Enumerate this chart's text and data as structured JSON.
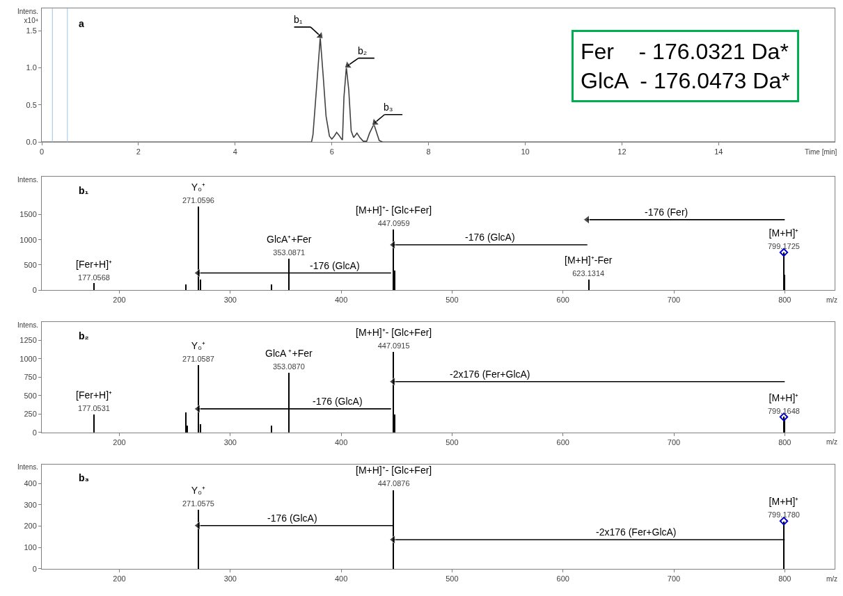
{
  "chart_data": [
    {
      "type": "line",
      "title": "a",
      "xlabel": "Time [min]",
      "ylabel": "Intens.\nx10⁴",
      "xlim": [
        0,
        16.4
      ],
      "xticks": [
        0,
        2,
        4,
        6,
        8,
        10,
        12,
        14
      ],
      "ylim": [
        0,
        1.8
      ],
      "yticks": [
        {
          "value": 0,
          "label": "0.0"
        },
        0.5,
        {
          "value": 1,
          "label": "1.0"
        },
        1.5
      ],
      "series": [
        {
          "color": "#404040",
          "x": [
            0,
            5.58,
            5.61,
            5.68,
            5.76,
            5.82,
            5.88,
            5.95,
            6.0,
            6.05,
            6.1,
            6.15,
            6.2,
            6.22,
            6.25,
            6.3,
            6.35,
            6.4,
            6.45,
            6.52,
            6.58,
            6.65,
            6.72,
            6.78,
            6.87,
            6.93,
            6.98,
            7.05,
            16.4
          ],
          "values": [
            0,
            0,
            0.1,
            0.7,
            1.41,
            0.9,
            0.35,
            0.08,
            0.04,
            0.08,
            0.13,
            0.09,
            0.04,
            0.03,
            0.6,
            1.01,
            0.7,
            0.15,
            0.06,
            0.12,
            0.06,
            0.01,
            0.01,
            0.12,
            0.24,
            0.12,
            0.02,
            0,
            0
          ]
        },
        {
          "type": "line",
          "color": "#000000",
          "x": [
            5.22,
            5.56
          ],
          "values": [
            1.55,
            1.55
          ]
        },
        {
          "type": "line",
          "marker": "triangle",
          "color": "#000000",
          "x": [
            5.56,
            5.76
          ],
          "values": [
            1.55,
            1.43
          ]
        },
        {
          "type": "line",
          "color": "#000000",
          "x": [
            6.88,
            6.55
          ],
          "values": [
            1.13,
            1.13
          ]
        },
        {
          "type": "line",
          "marker": "triangle",
          "color": "#000000",
          "x": [
            6.55,
            6.33
          ],
          "values": [
            1.13,
            1.03
          ]
        },
        {
          "type": "line",
          "color": "#000000",
          "x": [
            7.46,
            7.09
          ],
          "values": [
            0.37,
            0.37
          ]
        },
        {
          "type": "line",
          "marker": "triangle",
          "color": "#000000",
          "x": [
            7.09,
            6.89
          ],
          "values": [
            0.37,
            0.26
          ]
        }
      ],
      "ref_lines": [
        {
          "axis": "x",
          "value": 0.22,
          "color": "#9dc3e6"
        },
        {
          "axis": "x",
          "value": 0.53,
          "color": "#9dc3e6"
        }
      ],
      "annotations": [
        {
          "text": "b₁",
          "x": 5.3,
          "y": 1.55
        },
        {
          "text": "b₂",
          "x": 6.63,
          "y": 1.13
        },
        {
          "text": "b₃",
          "x": 7.17,
          "y": 0.37
        },
        "Fer    - 176.0321 Da*\nGlcA  - 176.0473 Da*"
      ]
    },
    {
      "type": "bar",
      "title": "b₁",
      "xlabel": "m/z",
      "ylabel": "Intens.",
      "xlim": [
        130,
        845
      ],
      "xticks": [
        200,
        300,
        400,
        500,
        600,
        700,
        800
      ],
      "ylim": [
        0,
        2250
      ],
      "yticks": [
        0,
        500,
        1000,
        1500
      ],
      "series": [
        {
          "color": "#000000",
          "x": [
            177.0568,
            260,
            271.0596,
            273,
            337,
            353.0871,
            447.0959,
            448,
            623.1314,
            799.1725,
            800
          ],
          "values": [
            130,
            110,
            1660,
            200,
            110,
            620,
            1200,
            380,
            210,
            750,
            300
          ]
        },
        {
          "type": "scatter",
          "marker": "diamond",
          "color": "#0000cc",
          "x": [
            799.1725
          ],
          "values": [
            750
          ]
        },
        {
          "type": "line",
          "marker": "triangle",
          "color": "#000000",
          "x": [
            800,
            622
          ],
          "values": [
            1400,
            1400
          ]
        },
        {
          "type": "line",
          "marker": "triangle",
          "color": "#000000",
          "x": [
            622,
            447
          ],
          "values": [
            900,
            900
          ]
        },
        {
          "type": "line",
          "marker": "triangle",
          "color": "#000000",
          "x": [
            445,
            271
          ],
          "values": [
            340,
            340
          ]
        }
      ],
      "annotations": [
        {
          "text": "Y₀⁺\n271.0596",
          "x": 271.0596,
          "y": 1660
        },
        {
          "text": "[Fer+H]⁺\n177.0568",
          "x": 177.0568,
          "y": 130
        },
        {
          "text": "GlcA⁺+Fer\n353.0871",
          "x": 353.0871,
          "y": 620
        },
        {
          "text": "[M+H]⁺- [Glc+Fer]\n447.0959",
          "x": 447.0959,
          "y": 1200
        },
        {
          "text": "-176 (GlcA)",
          "x": 394,
          "y": 340
        },
        {
          "text": "-176 (GlcA)",
          "x": 534.5,
          "y": 900
        },
        {
          "text": "-176 (Fer)",
          "x": 693,
          "y": 1400
        },
        {
          "text": "[M+H]⁺\n799.1725",
          "x": 799.1725,
          "y": 750
        },
        {
          "text": "[M+H]⁺-Fer\n623.1314",
          "x": 623.1314,
          "y": 210
        }
      ]
    },
    {
      "type": "bar",
      "title": "b₂",
      "xlabel": "m/z",
      "ylabel": "Intens.",
      "xlim": [
        130,
        845
      ],
      "xticks": [
        200,
        300,
        400,
        500,
        600,
        700,
        800
      ],
      "ylim": [
        0,
        1500
      ],
      "yticks": [
        0,
        250,
        500,
        750,
        1000,
        1250
      ],
      "series": [
        {
          "color": "#000000",
          "x": [
            177.0531,
            260,
            261,
            271.0587,
            273,
            337,
            353.087,
            447.0915,
            448,
            799.1648,
            800
          ],
          "values": [
            240,
            270,
            90,
            910,
            110,
            90,
            810,
            1090,
            240,
            210,
            190
          ]
        },
        {
          "type": "scatter",
          "marker": "diamond",
          "color": "#0000cc",
          "x": [
            799.1648
          ],
          "values": [
            210
          ]
        },
        {
          "type": "line",
          "marker": "triangle",
          "color": "#000000",
          "x": [
            800,
            447
          ],
          "values": [
            690,
            690
          ]
        },
        {
          "type": "line",
          "marker": "triangle",
          "color": "#000000",
          "x": [
            445,
            271
          ],
          "values": [
            320,
            320
          ]
        }
      ],
      "annotations": [
        {
          "text": "[M+H]⁺- [Glc+Fer]\n447.0915",
          "x": 447.0915,
          "y": 1090
        },
        {
          "text": "Y₀⁺\n271.0587",
          "x": 271.0587,
          "y": 910
        },
        {
          "text": "GlcA ⁺+Fer\n353.0870",
          "x": 353.087,
          "y": 810
        },
        {
          "text": "[Fer+H]⁺\n177.0531",
          "x": 177.0531,
          "y": 240
        },
        {
          "text": "-176 (GlcA)",
          "x": 396.5,
          "y": 320
        },
        {
          "text": "-2x176 (Fer+GlcA)",
          "x": 534.5,
          "y": 690
        },
        {
          "text": "[M+H]⁺\n799.1648",
          "x": 799.1648,
          "y": 210
        }
      ]
    },
    {
      "type": "bar",
      "title": "b₃",
      "xlabel": "m/z",
      "ylabel": "Intens.",
      "xlim": [
        130,
        845
      ],
      "xticks": [
        200,
        300,
        400,
        500,
        600,
        700,
        800
      ],
      "ylim": [
        0,
        490
      ],
      "yticks": [
        0,
        100,
        200,
        300,
        400
      ],
      "series": [
        {
          "color": "#000000",
          "x": [
            271.0575,
            447.0876,
            799.178
          ],
          "values": [
            278,
            370,
            224
          ]
        },
        {
          "type": "scatter",
          "marker": "diamond",
          "color": "#0000cc",
          "x": [
            799.178
          ],
          "values": [
            224
          ]
        },
        {
          "type": "line",
          "marker": "triangle",
          "color": "#000000",
          "x": [
            447,
            271
          ],
          "values": [
            203,
            203
          ]
        },
        {
          "type": "line",
          "marker": "triangle",
          "color": "#000000",
          "x": [
            800,
            447
          ],
          "values": [
            137,
            137
          ]
        }
      ],
      "annotations": [
        {
          "text": "[M+H]⁺- [Glc+Fer]\n447.0876",
          "x": 447.0876,
          "y": 370
        },
        {
          "text": "Y₀⁺\n271.0575",
          "x": 271.0575,
          "y": 278
        },
        {
          "text": "-176 (GlcA)",
          "x": 355.7,
          "y": 203
        },
        {
          "text": "-2x176 (Fer+GlcA)",
          "x": 666,
          "y": 137
        },
        {
          "text": "[M+H]⁺\n799.1780",
          "x": 799.178,
          "y": 224
        }
      ]
    }
  ]
}
